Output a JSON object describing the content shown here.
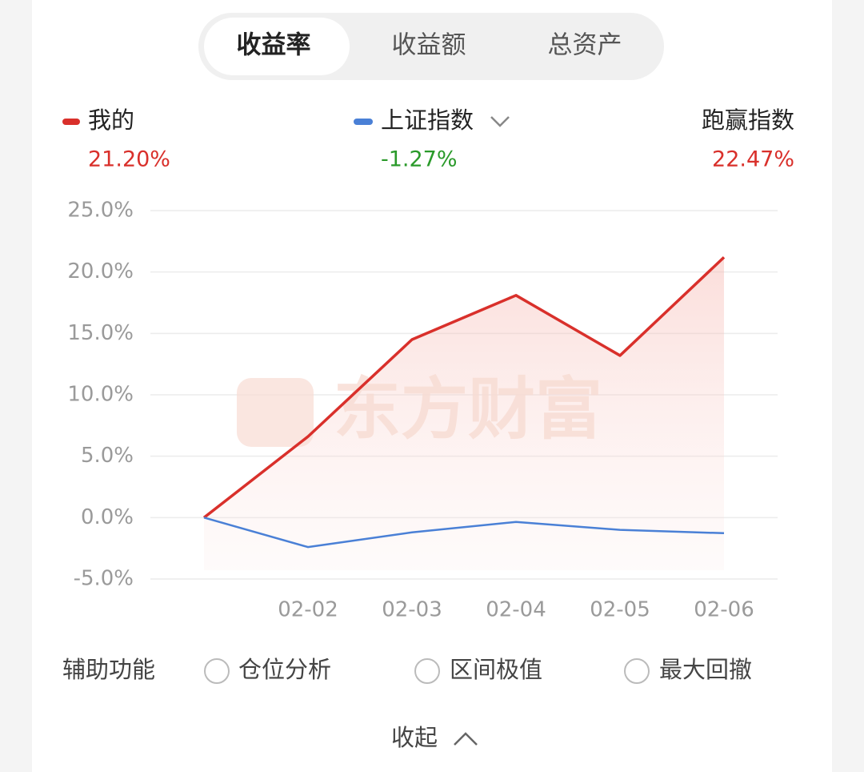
{
  "tabs": [
    "收益率",
    "收益额",
    "总资产"
  ],
  "chart_data": {
    "type": "line",
    "categories": [
      null,
      "02-02",
      "02-03",
      "02-04",
      "02-05",
      "02-06"
    ],
    "series": [
      {
        "name": "我的",
        "color": "#d9302b",
        "total": "21.20%",
        "values": [
          0,
          6.6,
          14.5,
          18.1,
          13.2,
          21.2
        ]
      },
      {
        "name": "上证指数",
        "color": "#4a80d6",
        "total": "-1.27%",
        "values": [
          0,
          -2.4,
          -1.2,
          -0.35,
          -1.0,
          -1.27
        ]
      }
    ],
    "ylim": [
      -5,
      25
    ],
    "yticks": [
      {
        "value": 25,
        "label": "25.0%"
      },
      {
        "value": 20,
        "label": "20.0%"
      },
      {
        "value": 15,
        "label": "15.0%"
      },
      {
        "value": 10,
        "label": "10.0%"
      },
      {
        "value": 5,
        "label": "5.0%"
      },
      {
        "value": 0,
        "label": "0.0%"
      },
      {
        "value": -5,
        "label": "-5.0%"
      }
    ],
    "grid": true,
    "watermark": "东方财富"
  },
  "outperform": {
    "label": "跑赢指数",
    "value": "22.47%"
  },
  "assist": {
    "label": "辅助功能",
    "options": [
      "仓位分析",
      "区间极值",
      "最大回撤"
    ]
  },
  "collapse": "收起"
}
